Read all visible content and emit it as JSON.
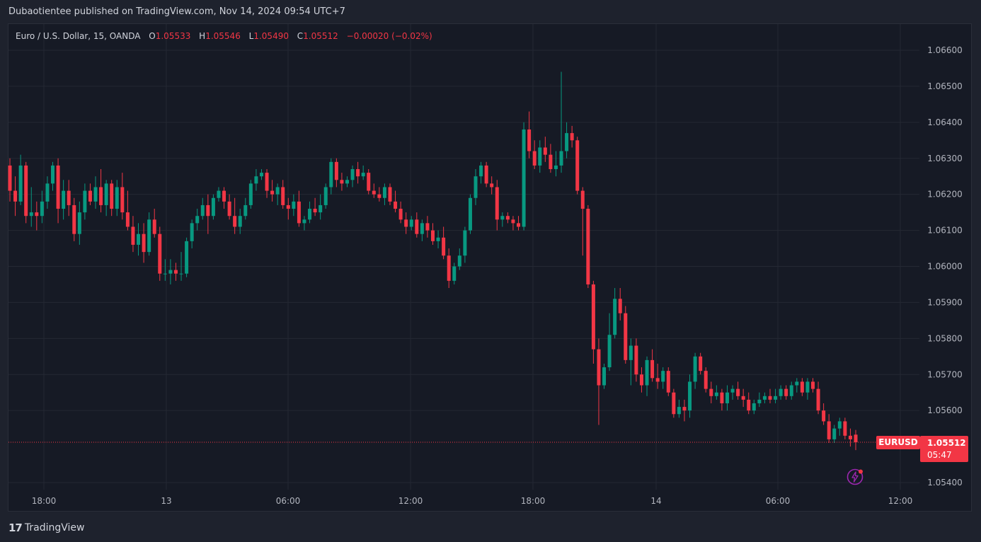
{
  "header": {
    "publisher_line": "Dubaotientee published on TradingView.com, Nov 14, 2024 09:54 UTC+7"
  },
  "legend": {
    "symbol": "Euro / U.S. Dollar, 15, OANDA",
    "open_label": "O",
    "open": "1.05533",
    "high_label": "H",
    "high": "1.05546",
    "low_label": "L",
    "low": "1.05490",
    "close_label": "C",
    "close": "1.05512",
    "change": "−0.00020 (−0.02%)"
  },
  "last_price": {
    "symbol": "EURUSD",
    "price": "1.05512",
    "countdown": "05:47"
  },
  "footer": {
    "brand": "TradingView",
    "logo_text": "17"
  },
  "colors": {
    "up": "#089981",
    "down": "#f23645",
    "background": "#161a25",
    "grid": "#242833",
    "axis_text": "#b2b5be"
  },
  "chart_data": {
    "type": "candlestick",
    "ylim": [
      1.0539,
      1.0668
    ],
    "y_ticks": [
      "1.06600",
      "1.06500",
      "1.06400",
      "1.06300",
      "1.06200",
      "1.06100",
      "1.06000",
      "1.05900",
      "1.05800",
      "1.05700",
      "1.05600",
      "1.05400"
    ],
    "x_ticks": [
      "18:00",
      "13",
      "06:00",
      "12:00",
      "18:00",
      "14",
      "06:00",
      "12:00"
    ],
    "last_price": 1.05512,
    "grid": true,
    "candles": [
      [
        1.0628,
        1.063,
        1.0618,
        1.0621
      ],
      [
        1.0621,
        1.0625,
        1.0614,
        1.0618
      ],
      [
        1.0618,
        1.0631,
        1.0617,
        1.0628
      ],
      [
        1.0628,
        1.0629,
        1.0612,
        1.0614
      ],
      [
        1.0614,
        1.0622,
        1.0611,
        1.0615
      ],
      [
        1.0615,
        1.0618,
        1.061,
        1.0614
      ],
      [
        1.0614,
        1.0621,
        1.0612,
        1.0618
      ],
      [
        1.0618,
        1.0625,
        1.0616,
        1.0623
      ],
      [
        1.0623,
        1.0629,
        1.0621,
        1.0628
      ],
      [
        1.0628,
        1.063,
        1.0612,
        1.0616
      ],
      [
        1.0616,
        1.0624,
        1.0613,
        1.0621
      ],
      [
        1.0621,
        1.0624,
        1.0614,
        1.0617
      ],
      [
        1.0617,
        1.0619,
        1.0607,
        1.0609
      ],
      [
        1.0609,
        1.0618,
        1.0606,
        1.0615
      ],
      [
        1.0615,
        1.0623,
        1.0613,
        1.0621
      ],
      [
        1.0621,
        1.0623,
        1.0617,
        1.0618
      ],
      [
        1.0618,
        1.0625,
        1.0616,
        1.0622
      ],
      [
        1.0622,
        1.0627,
        1.0615,
        1.0617
      ],
      [
        1.0617,
        1.0624,
        1.0614,
        1.0623
      ],
      [
        1.0623,
        1.0624,
        1.0614,
        1.0616
      ],
      [
        1.0616,
        1.0624,
        1.0614,
        1.0622
      ],
      [
        1.0622,
        1.0626,
        1.0613,
        1.0615
      ],
      [
        1.0615,
        1.0621,
        1.061,
        1.0611
      ],
      [
        1.0611,
        1.0614,
        1.0604,
        1.0606
      ],
      [
        1.0606,
        1.0612,
        1.0603,
        1.0609
      ],
      [
        1.0609,
        1.0612,
        1.0601,
        1.0604
      ],
      [
        1.0604,
        1.0615,
        1.0603,
        1.0613
      ],
      [
        1.0613,
        1.0616,
        1.0608,
        1.0609
      ],
      [
        1.0609,
        1.0611,
        1.0596,
        1.0598
      ],
      [
        1.0598,
        1.0602,
        1.0596,
        1.0598
      ],
      [
        1.0598,
        1.0602,
        1.0595,
        1.0599
      ],
      [
        1.0599,
        1.0601,
        1.0596,
        1.0598
      ],
      [
        1.0598,
        1.0604,
        1.0596,
        1.0598
      ],
      [
        1.0598,
        1.0608,
        1.0597,
        1.0607
      ],
      [
        1.0607,
        1.0613,
        1.0605,
        1.0612
      ],
      [
        1.0612,
        1.0616,
        1.061,
        1.0614
      ],
      [
        1.0614,
        1.0619,
        1.0613,
        1.0617
      ],
      [
        1.0617,
        1.062,
        1.0609,
        1.0614
      ],
      [
        1.0614,
        1.062,
        1.0613,
        1.0619
      ],
      [
        1.0619,
        1.0622,
        1.0618,
        1.0621
      ],
      [
        1.0621,
        1.0622,
        1.0616,
        1.0618
      ],
      [
        1.0618,
        1.062,
        1.0613,
        1.0614
      ],
      [
        1.0614,
        1.0619,
        1.0609,
        1.0611
      ],
      [
        1.0611,
        1.0616,
        1.0609,
        1.0614
      ],
      [
        1.0614,
        1.0619,
        1.0613,
        1.0617
      ],
      [
        1.0617,
        1.0624,
        1.0616,
        1.0623
      ],
      [
        1.0623,
        1.0627,
        1.0621,
        1.0625
      ],
      [
        1.0625,
        1.0627,
        1.0624,
        1.0626
      ],
      [
        1.0626,
        1.0627,
        1.0619,
        1.0621
      ],
      [
        1.0621,
        1.0624,
        1.0618,
        1.062
      ],
      [
        1.062,
        1.0623,
        1.0617,
        1.0622
      ],
      [
        1.0622,
        1.0624,
        1.0616,
        1.0617
      ],
      [
        1.0617,
        1.0619,
        1.0613,
        1.0616
      ],
      [
        1.0616,
        1.062,
        1.0614,
        1.0618
      ],
      [
        1.0618,
        1.0621,
        1.0611,
        1.0612
      ],
      [
        1.0612,
        1.0614,
        1.061,
        1.0613
      ],
      [
        1.0613,
        1.0618,
        1.0612,
        1.0616
      ],
      [
        1.0616,
        1.0619,
        1.0614,
        1.0615
      ],
      [
        1.0615,
        1.062,
        1.0613,
        1.0617
      ],
      [
        1.0617,
        1.0623,
        1.0616,
        1.0622
      ],
      [
        1.0622,
        1.063,
        1.062,
        1.0629
      ],
      [
        1.0629,
        1.063,
        1.0622,
        1.0624
      ],
      [
        1.0624,
        1.0626,
        1.0621,
        1.0623
      ],
      [
        1.0623,
        1.0625,
        1.0622,
        1.0624
      ],
      [
        1.0624,
        1.0628,
        1.0622,
        1.0627
      ],
      [
        1.0627,
        1.0629,
        1.0623,
        1.0625
      ],
      [
        1.0625,
        1.0628,
        1.0624,
        1.0626
      ],
      [
        1.0626,
        1.0627,
        1.062,
        1.0621
      ],
      [
        1.0621,
        1.0623,
        1.0619,
        1.062
      ],
      [
        1.062,
        1.0622,
        1.0618,
        1.0619
      ],
      [
        1.0619,
        1.0623,
        1.0617,
        1.0622
      ],
      [
        1.0622,
        1.0623,
        1.0617,
        1.0618
      ],
      [
        1.0618,
        1.0621,
        1.0615,
        1.0616
      ],
      [
        1.0616,
        1.0618,
        1.0612,
        1.0613
      ],
      [
        1.0613,
        1.0615,
        1.0609,
        1.0611
      ],
      [
        1.0611,
        1.0614,
        1.061,
        1.0613
      ],
      [
        1.0613,
        1.0615,
        1.0608,
        1.0609
      ],
      [
        1.0609,
        1.0613,
        1.0607,
        1.0612
      ],
      [
        1.0612,
        1.0614,
        1.0608,
        1.061
      ],
      [
        1.061,
        1.0612,
        1.0606,
        1.0607
      ],
      [
        1.0607,
        1.061,
        1.0605,
        1.0608
      ],
      [
        1.0608,
        1.0611,
        1.0602,
        1.0603
      ],
      [
        1.0603,
        1.0605,
        1.0594,
        1.0596
      ],
      [
        1.0596,
        1.0601,
        1.0595,
        1.06
      ],
      [
        1.06,
        1.0605,
        1.0599,
        1.0603
      ],
      [
        1.0603,
        1.0611,
        1.0601,
        1.061
      ],
      [
        1.061,
        1.062,
        1.0609,
        1.0619
      ],
      [
        1.0619,
        1.0627,
        1.0617,
        1.0625
      ],
      [
        1.0625,
        1.0629,
        1.0623,
        1.0628
      ],
      [
        1.0628,
        1.0629,
        1.0622,
        1.0623
      ],
      [
        1.0623,
        1.0625,
        1.062,
        1.0622
      ],
      [
        1.0622,
        1.0624,
        1.061,
        1.0613
      ],
      [
        1.0613,
        1.0615,
        1.0611,
        1.0614
      ],
      [
        1.0614,
        1.0615,
        1.0612,
        1.0613
      ],
      [
        1.0613,
        1.0614,
        1.061,
        1.0612
      ],
      [
        1.0612,
        1.0614,
        1.061,
        1.0611
      ],
      [
        1.0611,
        1.064,
        1.061,
        1.0638
      ],
      [
        1.0638,
        1.0643,
        1.063,
        1.0632
      ],
      [
        1.0632,
        1.0635,
        1.0627,
        1.0628
      ],
      [
        1.0628,
        1.0635,
        1.0626,
        1.0633
      ],
      [
        1.0633,
        1.0636,
        1.0629,
        1.0631
      ],
      [
        1.0631,
        1.0634,
        1.0626,
        1.0627
      ],
      [
        1.0627,
        1.0632,
        1.0625,
        1.0628
      ],
      [
        1.0628,
        1.0654,
        1.0626,
        1.0632
      ],
      [
        1.0632,
        1.064,
        1.063,
        1.0637
      ],
      [
        1.0637,
        1.0639,
        1.0633,
        1.0635
      ],
      [
        1.0635,
        1.0636,
        1.062,
        1.0621
      ],
      [
        1.0621,
        1.0622,
        1.0603,
        1.0616
      ],
      [
        1.0616,
        1.0617,
        1.0594,
        1.0595
      ],
      [
        1.0595,
        1.0596,
        1.0573,
        1.0577
      ],
      [
        1.0577,
        1.058,
        1.0556,
        1.0567
      ],
      [
        1.0567,
        1.0573,
        1.0566,
        1.0572
      ],
      [
        1.0572,
        1.0587,
        1.0571,
        1.0581
      ],
      [
        1.0581,
        1.0594,
        1.058,
        1.0591
      ],
      [
        1.0591,
        1.0594,
        1.0585,
        1.0587
      ],
      [
        1.0587,
        1.0589,
        1.0573,
        1.0574
      ],
      [
        1.0574,
        1.058,
        1.0567,
        1.0578
      ],
      [
        1.0578,
        1.058,
        1.0568,
        1.057
      ],
      [
        1.057,
        1.0572,
        1.0565,
        1.0567
      ],
      [
        1.0567,
        1.0575,
        1.0564,
        1.0574
      ],
      [
        1.0574,
        1.0577,
        1.0568,
        1.0569
      ],
      [
        1.0569,
        1.0573,
        1.0566,
        1.0568
      ],
      [
        1.0568,
        1.0572,
        1.0566,
        1.0571
      ],
      [
        1.0571,
        1.0572,
        1.0564,
        1.0565
      ],
      [
        1.0565,
        1.0566,
        1.0558,
        1.0559
      ],
      [
        1.0559,
        1.0563,
        1.0558,
        1.0561
      ],
      [
        1.0561,
        1.0563,
        1.0557,
        1.056
      ],
      [
        1.056,
        1.057,
        1.0558,
        1.0568
      ],
      [
        1.0568,
        1.0576,
        1.0566,
        1.0575
      ],
      [
        1.0575,
        1.0576,
        1.057,
        1.0571
      ],
      [
        1.0571,
        1.0572,
        1.0565,
        1.0566
      ],
      [
        1.0566,
        1.0568,
        1.0562,
        1.0564
      ],
      [
        1.0564,
        1.0567,
        1.0563,
        1.0565
      ],
      [
        1.0565,
        1.0566,
        1.056,
        1.0562
      ],
      [
        1.0562,
        1.0567,
        1.056,
        1.0565
      ],
      [
        1.0565,
        1.0567,
        1.0563,
        1.0566
      ],
      [
        1.0566,
        1.0568,
        1.0563,
        1.0564
      ],
      [
        1.0564,
        1.0566,
        1.0561,
        1.0563
      ],
      [
        1.0563,
        1.0565,
        1.0559,
        1.056
      ],
      [
        1.056,
        1.0563,
        1.0559,
        1.0562
      ],
      [
        1.0562,
        1.0565,
        1.0561,
        1.0563
      ],
      [
        1.0563,
        1.0565,
        1.0562,
        1.0564
      ],
      [
        1.0564,
        1.0566,
        1.0562,
        1.0563
      ],
      [
        1.0563,
        1.0566,
        1.0562,
        1.0564
      ],
      [
        1.0564,
        1.0567,
        1.0563,
        1.0566
      ],
      [
        1.0566,
        1.0567,
        1.0563,
        1.0564
      ],
      [
        1.0564,
        1.0568,
        1.0563,
        1.0567
      ],
      [
        1.0567,
        1.0569,
        1.0565,
        1.0568
      ],
      [
        1.0568,
        1.0569,
        1.0564,
        1.0565
      ],
      [
        1.0565,
        1.0569,
        1.0563,
        1.0568
      ],
      [
        1.0568,
        1.0569,
        1.0565,
        1.0566
      ],
      [
        1.0566,
        1.0568,
        1.0559,
        1.056
      ],
      [
        1.056,
        1.0562,
        1.0556,
        1.0557
      ],
      [
        1.0557,
        1.0559,
        1.0551,
        1.0552
      ],
      [
        1.0552,
        1.0556,
        1.0551,
        1.0555
      ],
      [
        1.0555,
        1.0558,
        1.0553,
        1.0557
      ],
      [
        1.0557,
        1.0558,
        1.0552,
        1.0553
      ],
      [
        1.0553,
        1.0555,
        1.055,
        1.0552
      ],
      [
        1.05533,
        1.05546,
        1.0549,
        1.05512
      ]
    ]
  }
}
